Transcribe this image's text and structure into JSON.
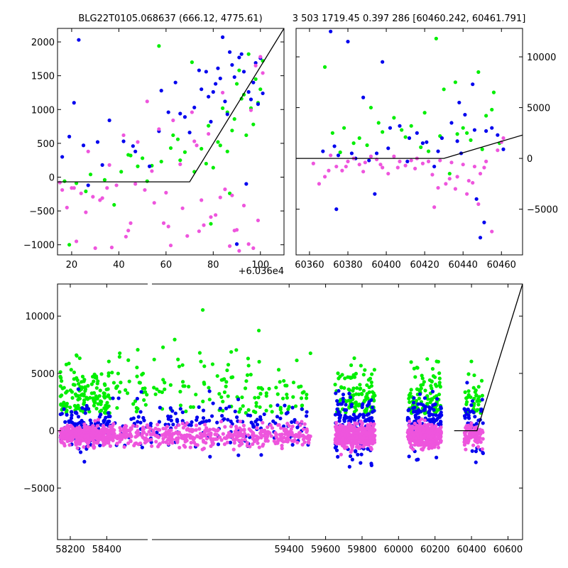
{
  "chart_data": [
    {
      "type": "scatter",
      "title": "BLG22T0105.068637 (666.12, 4775.61)",
      "xlim": [
        14,
        110
      ],
      "ylim": [
        -1150,
        2200
      ],
      "x_offset_label": "+6.036e4",
      "xticks": [
        20,
        40,
        60,
        80,
        100
      ],
      "yticks": [
        -1000,
        -500,
        0,
        500,
        1000,
        1500,
        2000
      ],
      "model_line": [
        [
          14,
          -70
        ],
        [
          70,
          -70
        ],
        [
          110,
          2200
        ]
      ],
      "series": [
        {
          "color": "#00ee00",
          "x": [
            17,
            22,
            28,
            34,
            41,
            45,
            50,
            54,
            58,
            62,
            65,
            68,
            72,
            75,
            78,
            80,
            82,
            84,
            86,
            88,
            90,
            92,
            94,
            96,
            98,
            100,
            101,
            86,
            89,
            93,
            63,
            57,
            48,
            38,
            26,
            19,
            71,
            77,
            83,
            91,
            97,
            99,
            95,
            87,
            79,
            66,
            52,
            44
          ],
          "y": [
            -60,
            -90,
            40,
            -40,
            80,
            320,
            280,
            170,
            230,
            430,
            560,
            370,
            80,
            420,
            760,
            140,
            520,
            1020,
            960,
            690,
            1380,
            1160,
            620,
            1020,
            1450,
            1300,
            1720,
            380,
            860,
            1220,
            620,
            1940,
            160,
            -410,
            -210,
            -1000,
            1700,
            200,
            470,
            1580,
            780,
            1100,
            1820,
            -240,
            -690,
            250,
            -60,
            330
          ]
        },
        {
          "color": "#0000ee",
          "x": [
            16,
            19,
            23,
            27,
            31,
            36,
            42,
            47,
            53,
            57,
            61,
            64,
            68,
            72,
            75,
            77,
            79,
            81,
            83,
            85,
            87,
            89,
            91,
            93,
            95,
            97,
            99,
            100,
            101,
            66,
            74,
            84,
            88,
            92,
            96,
            98,
            58,
            46,
            33,
            25,
            21,
            70,
            80,
            86,
            90,
            94,
            78,
            82
          ],
          "y": [
            300,
            600,
            2030,
            -120,
            520,
            840,
            530,
            380,
            160,
            680,
            960,
            1400,
            890,
            1030,
            1300,
            1560,
            820,
            1380,
            1460,
            1120,
            1850,
            1480,
            1770,
            1560,
            1260,
            1400,
            1080,
            1760,
            1240,
            940,
            1580,
            2070,
            1660,
            1820,
            1150,
            1690,
            1280,
            460,
            180,
            470,
            1100,
            660,
            1260,
            930,
            -990,
            -100,
            1190,
            1610
          ]
        },
        {
          "color": "#ee55dd",
          "x": [
            15,
            18,
            21,
            24,
            27,
            30,
            33,
            36,
            39,
            42,
            45,
            48,
            51,
            54,
            57,
            60,
            63,
            66,
            69,
            72,
            75,
            78,
            81,
            84,
            87,
            90,
            93,
            96,
            98,
            100,
            101,
            16,
            22,
            29,
            37,
            44,
            52,
            59,
            67,
            73,
            79,
            85,
            91,
            97,
            99,
            26,
            35,
            43,
            55,
            62,
            71,
            76,
            83,
            89,
            95,
            20,
            32,
            47,
            61,
            74,
            88
          ],
          "y": [
            -80,
            -450,
            -160,
            -240,
            380,
            -1050,
            -310,
            180,
            -120,
            620,
            -680,
            520,
            -190,
            90,
            710,
            -230,
            840,
            190,
            -870,
            530,
            -340,
            640,
            -560,
            1250,
            -1020,
            -780,
            -420,
            990,
            1650,
            1780,
            1540,
            -190,
            -950,
            -290,
            -1040,
            -790,
            1120,
            -680,
            -460,
            470,
            -590,
            -180,
            -1090,
            -1050,
            -640,
            -520,
            -160,
            -880,
            -380,
            -1010,
            960,
            -710,
            -300,
            -790,
            -990,
            -160,
            -340,
            -100,
            -730,
            -800,
            -270
          ]
        }
      ]
    },
    {
      "type": "scatter",
      "title": "3 503 1719.45 0.397 286 [60460.242, 60461.791]",
      "xlim": [
        60353,
        60471
      ],
      "ylim": [
        -9500,
        12800
      ],
      "xticks": [
        60360,
        60380,
        60400,
        60420,
        60440,
        60460
      ],
      "yticks": [
        -5000,
        0,
        5000,
        10000
      ],
      "yaxis_side": "right",
      "model_line": [
        [
          60353,
          0
        ],
        [
          60430,
          0
        ],
        [
          60471,
          2300
        ]
      ],
      "series": [
        {
          "color": "#00ee00",
          "x": [
            60368,
            60372,
            60378,
            60386,
            60392,
            60396,
            60404,
            60408,
            60413,
            60420,
            60426,
            60428,
            60433,
            60436,
            60440,
            60444,
            60448,
            60452,
            60456,
            60459,
            60383,
            60398,
            60418,
            60430,
            60442,
            60450,
            60376,
            60390,
            60410,
            60422,
            60437,
            60455
          ],
          "y": [
            9000,
            2500,
            3000,
            2000,
            5000,
            3500,
            4000,
            2800,
            3200,
            4500,
            11800,
            2200,
            -1500,
            7500,
            3000,
            1800,
            8500,
            4200,
            6500,
            1500,
            1500,
            2600,
            1100,
            6800,
            2500,
            900,
            600,
            1300,
            2100,
            700,
            2400,
            4800
          ]
        },
        {
          "color": "#0000ee",
          "x": [
            60367,
            60371,
            60374,
            60380,
            60384,
            60388,
            60394,
            60398,
            60402,
            60407,
            60412,
            60416,
            60421,
            60425,
            60429,
            60434,
            60438,
            60441,
            60445,
            60449,
            60452,
            60455,
            60458,
            60461,
            60373,
            60382,
            60391,
            60401,
            60411,
            60419,
            60427,
            60437,
            60446,
            60451,
            60447,
            60439,
            60395,
            60375
          ],
          "y": [
            700,
            12500,
            -5000,
            11500,
            0,
            6000,
            -3500,
            9500,
            3000,
            3200,
            2000,
            2500,
            1600,
            -800,
            2000,
            3500,
            5500,
            4300,
            7300,
            -7800,
            2700,
            3000,
            2300,
            900,
            1200,
            500,
            -200,
            1000,
            -300,
            1500,
            700,
            1700,
            2800,
            -6300,
            -4000,
            500,
            500,
            300
          ]
        },
        {
          "color": "#ee55dd",
          "x": [
            60365,
            60368,
            60371,
            60374,
            60377,
            60380,
            60383,
            60386,
            60389,
            60392,
            60395,
            60398,
            60401,
            60404,
            60407,
            60410,
            60413,
            60416,
            60419,
            60422,
            60425,
            60428,
            60431,
            60434,
            60437,
            60440,
            60443,
            60446,
            60449,
            60452,
            60455,
            60458,
            60461,
            60362,
            60370,
            60379,
            60388,
            60397,
            60406,
            60415,
            60424,
            60433,
            60442,
            60451,
            60460,
            60427,
            60436,
            60445,
            60448
          ],
          "y": [
            -2500,
            -1800,
            300,
            -800,
            -1200,
            -300,
            0,
            -600,
            -400,
            200,
            -100,
            -900,
            -1500,
            200,
            -300,
            -700,
            -200,
            0,
            -500,
            -300,
            -4800,
            -200,
            -2500,
            -400,
            -1800,
            -600,
            -2200,
            -800,
            -1500,
            -300,
            -7200,
            800,
            2000,
            -500,
            -1200,
            -800,
            -1300,
            -600,
            -900,
            -1000,
            -1600,
            -2000,
            -3500,
            -900,
            1600,
            -2900,
            -3000,
            -2400,
            -4500
          ]
        }
      ]
    },
    {
      "type": "scatter",
      "xlim": [
        58130,
        60680
      ],
      "ylim": [
        -9500,
        12800
      ],
      "xticks": [
        58200,
        58400,
        59400,
        59600,
        59800,
        60000,
        60200,
        60400,
        60600
      ],
      "yticks": [
        -5000,
        0,
        5000,
        10000
      ],
      "model_line": [
        [
          60305,
          0
        ],
        [
          60430,
          0
        ],
        [
          60680,
          12800
        ]
      ],
      "seasons": [
        [
          58145,
          58420
        ],
        [
          58230,
          59520
        ],
        [
          59650,
          59870
        ],
        [
          60050,
          60235
        ],
        [
          60360,
          60465
        ]
      ],
      "series": [
        {
          "color": "#00ee00",
          "density": [
            120,
            180,
            110,
            100,
            40
          ],
          "spread": [
            3500,
            5000,
            3500,
            3500,
            3000
          ]
        },
        {
          "color": "#0000ee",
          "density": [
            90,
            180,
            150,
            120,
            40
          ],
          "spread": [
            1500,
            2000,
            2300,
            2300,
            2500
          ]
        },
        {
          "color": "#ee55dd",
          "density": [
            300,
            500,
            400,
            350,
            90
          ],
          "spread": [
            700,
            800,
            900,
            800,
            900
          ]
        }
      ]
    }
  ]
}
